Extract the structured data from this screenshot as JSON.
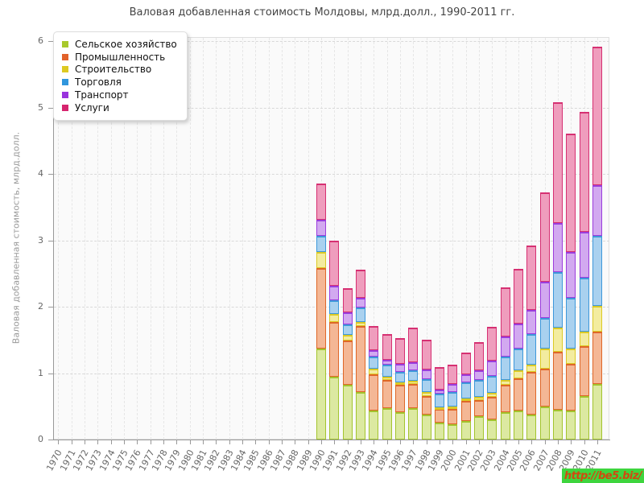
{
  "title": "Валовая добавленная стоимость Молдовы, млрд.долл., 1990-2011 гг.",
  "y_axis": {
    "label": "Валовая добавленная стоимость, млрд.долл.",
    "ticks": [
      0,
      1,
      2,
      3,
      4,
      5,
      6
    ]
  },
  "x_axis": {
    "years": [
      1970,
      1971,
      1972,
      1973,
      1974,
      1975,
      1976,
      1977,
      1978,
      1979,
      1980,
      1981,
      1982,
      1983,
      1984,
      1985,
      1986,
      1987,
      1988,
      1989,
      1990,
      1991,
      1992,
      1993,
      1994,
      1995,
      1996,
      1997,
      1998,
      1999,
      2000,
      2001,
      2002,
      2003,
      2004,
      2005,
      2006,
      2007,
      2008,
      2009,
      2010,
      2011
    ]
  },
  "legend": [
    {
      "label": "Сельское хозяйство",
      "swatch": "#a8c92c",
      "stroke": "#a3c42e",
      "fill": "#dce9a1"
    },
    {
      "label": "Промышленность",
      "swatch": "#e2622a",
      "stroke": "#df6728",
      "fill": "#f4b795"
    },
    {
      "label": "Строительство",
      "swatch": "#ddc922",
      "stroke": "#dcca25",
      "fill": "#f3ec9f"
    },
    {
      "label": "Торговля",
      "swatch": "#3096dd",
      "stroke": "#3e98da",
      "fill": "#a9d1ef"
    },
    {
      "label": "Транспорт",
      "swatch": "#9933dd",
      "stroke": "#9b3ddd",
      "fill": "#d2a9f0"
    },
    {
      "label": "Услуги",
      "swatch": "#d6246e",
      "stroke": "#d63072",
      "fill": "#ef9dbd"
    }
  ],
  "watermark": {
    "text": "http://be5.biz/",
    "bg": "#3ed53e",
    "fg": "#d1490f"
  },
  "chart_data": {
    "type": "bar",
    "stacked": true,
    "title": "Валовая добавленная стоимость Молдовы, млрд.долл., 1990-2011 гг.",
    "xlabel": "",
    "ylabel": "Валовая добавленная стоимость, млрд.долл.",
    "ylim": [
      0,
      6
    ],
    "grid": true,
    "legend_position": "top-left",
    "categories": [
      1990,
      1991,
      1992,
      1993,
      1994,
      1995,
      1996,
      1997,
      1998,
      1999,
      2000,
      2001,
      2002,
      2003,
      2004,
      2005,
      2006,
      2007,
      2008,
      2009,
      2010,
      2011
    ],
    "series": [
      {
        "name": "Сельское хозяйство",
        "values": [
          1.37,
          0.95,
          0.82,
          0.72,
          0.44,
          0.47,
          0.41,
          0.47,
          0.38,
          0.26,
          0.23,
          0.28,
          0.35,
          0.3,
          0.41,
          0.44,
          0.38,
          0.5,
          0.45,
          0.44,
          0.66,
          0.84
        ]
      },
      {
        "name": "Промышленность",
        "values": [
          1.21,
          0.82,
          0.67,
          0.99,
          0.54,
          0.43,
          0.41,
          0.37,
          0.28,
          0.2,
          0.23,
          0.3,
          0.24,
          0.34,
          0.41,
          0.48,
          0.64,
          0.57,
          0.87,
          0.7,
          0.75,
          0.78
        ]
      },
      {
        "name": "Строительство",
        "values": [
          0.24,
          0.12,
          0.08,
          0.06,
          0.09,
          0.05,
          0.04,
          0.04,
          0.05,
          0.02,
          0.04,
          0.04,
          0.05,
          0.06,
          0.08,
          0.12,
          0.11,
          0.3,
          0.36,
          0.23,
          0.21,
          0.39
        ]
      },
      {
        "name": "Торговля",
        "values": [
          0.25,
          0.21,
          0.16,
          0.22,
          0.18,
          0.18,
          0.16,
          0.16,
          0.2,
          0.21,
          0.22,
          0.24,
          0.26,
          0.26,
          0.35,
          0.33,
          0.46,
          0.46,
          0.84,
          0.76,
          0.82,
          1.06
        ]
      },
      {
        "name": "Транспорт",
        "values": [
          0.24,
          0.22,
          0.18,
          0.14,
          0.1,
          0.07,
          0.12,
          0.12,
          0.14,
          0.06,
          0.12,
          0.12,
          0.14,
          0.23,
          0.3,
          0.38,
          0.36,
          0.55,
          0.74,
          0.69,
          0.69,
          0.76
        ]
      },
      {
        "name": "Услуги",
        "values": [
          0.55,
          0.68,
          0.37,
          0.43,
          0.36,
          0.39,
          0.39,
          0.52,
          0.45,
          0.34,
          0.29,
          0.33,
          0.43,
          0.51,
          0.74,
          0.82,
          0.97,
          1.34,
          1.82,
          1.79,
          1.8,
          2.09
        ]
      }
    ]
  }
}
